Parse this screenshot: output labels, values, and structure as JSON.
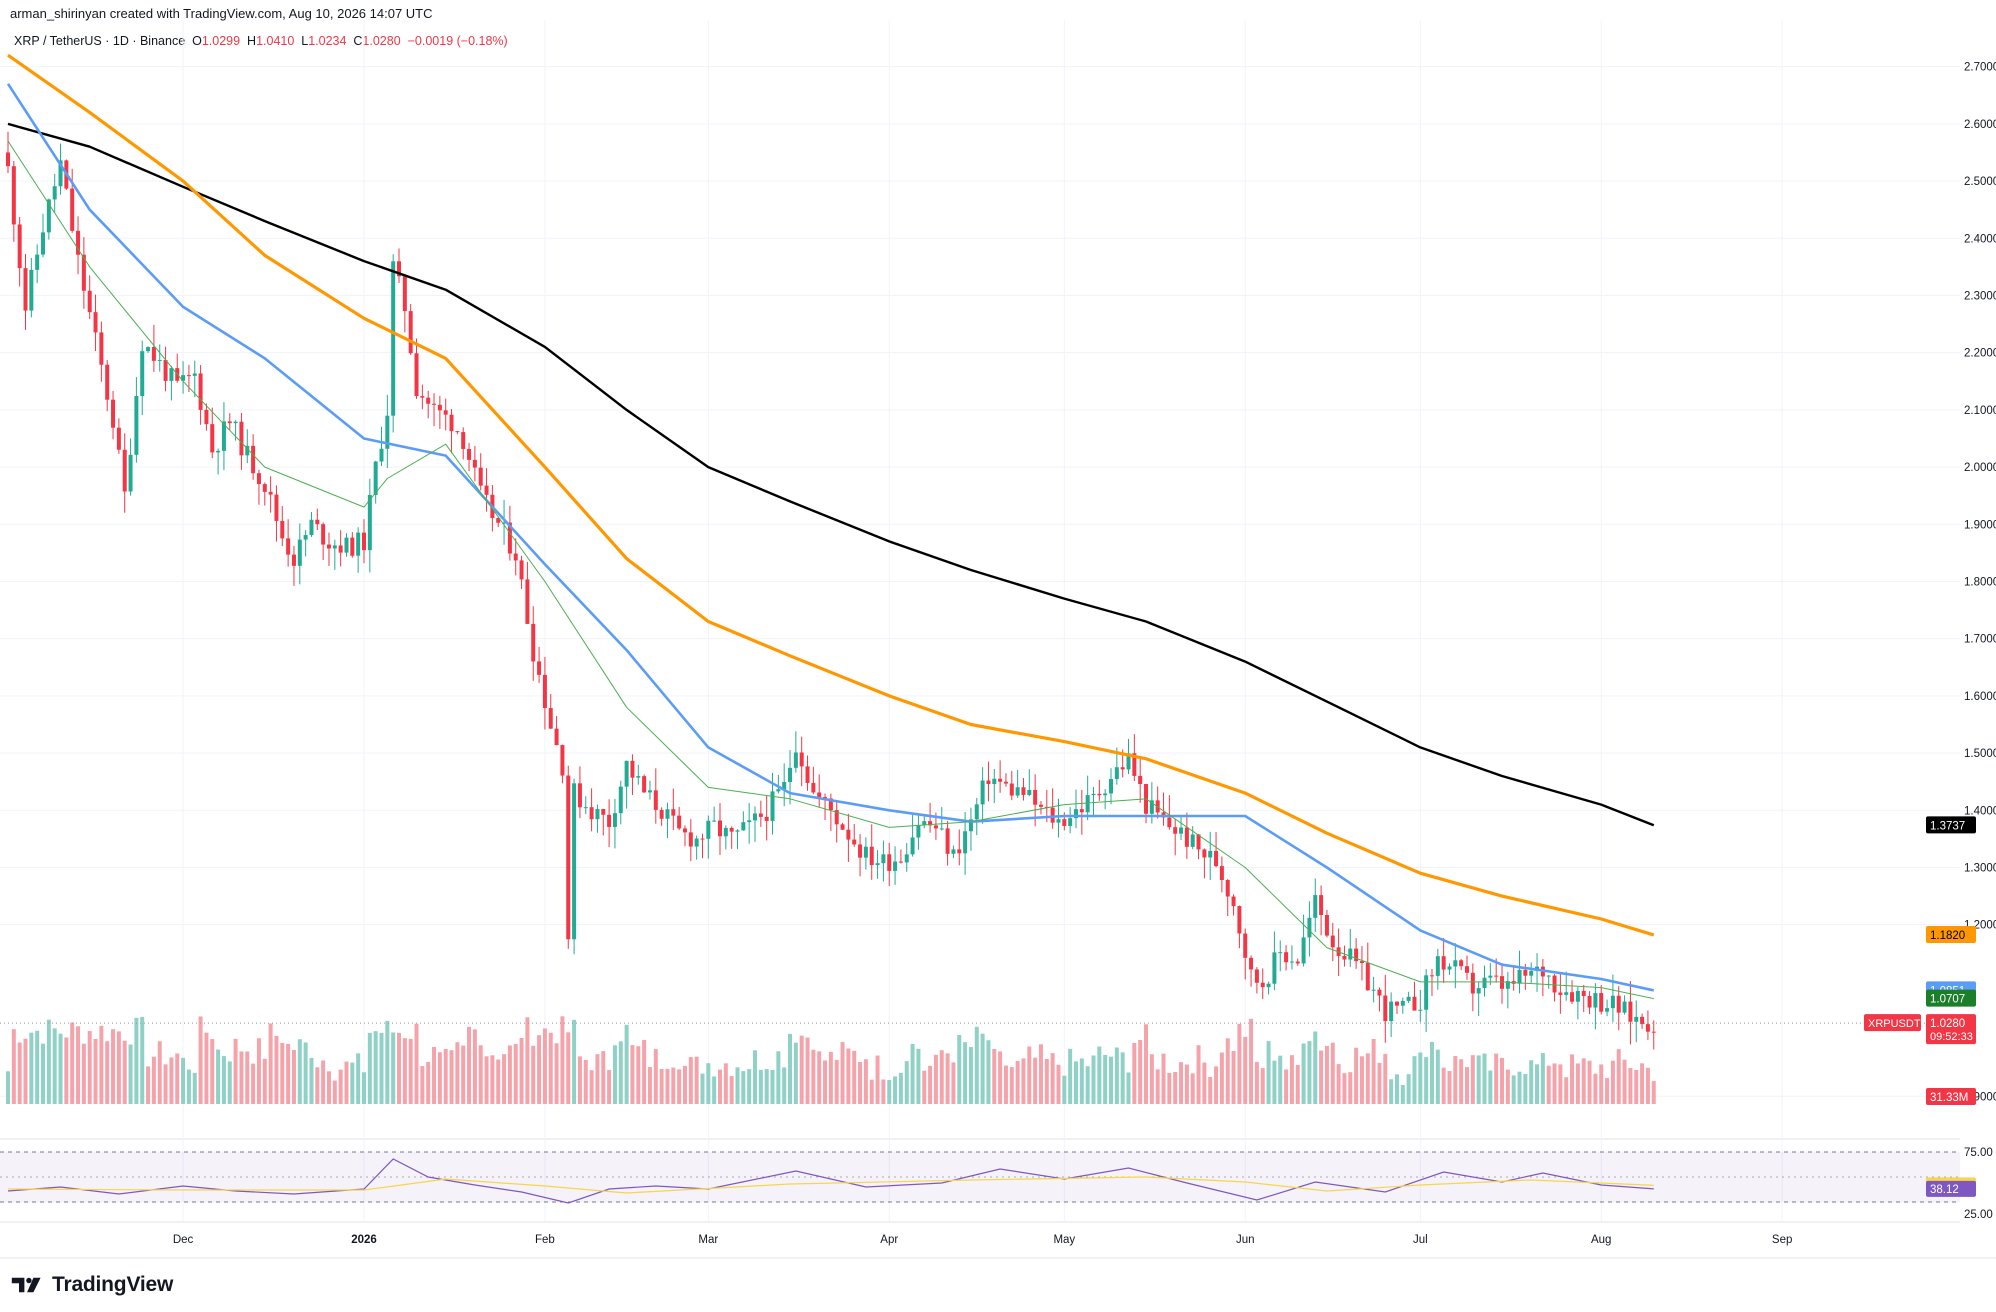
{
  "header": {
    "credit": "arman_shirinyan created with TradingView.com, Aug 10, 2026 14:07 UTC",
    "symbol": "XRP / TetherUS · 1D · Binance",
    "open_label": "O",
    "open": "1.0299",
    "high_label": "H",
    "high": "1.0410",
    "low_label": "L",
    "low": "1.0234",
    "close_label": "C",
    "close": "1.0280",
    "change": "−0.0019 (−0.18%)"
  },
  "brand": {
    "name": "TradingView",
    "icon": "tradingview-logo-icon"
  },
  "colors": {
    "up": "#22ab94",
    "down": "#f23645",
    "ma20": "#4caf50",
    "ma50": "#5b9cf6",
    "ma100": "#ff9800",
    "ma200": "#000000",
    "rsi": "#7e57c2",
    "rsi_ma": "#f7d64a",
    "vol_up": "#8fd1c6",
    "vol_down": "#f5a3ab"
  },
  "chart_data": {
    "type": "line",
    "instrument": "XRPUSDT",
    "timeframe": "1D",
    "x_ticks": [
      "Dec",
      "2026",
      "Feb",
      "Mar",
      "Apr",
      "May",
      "Jun",
      "Jul",
      "Aug",
      "Sep"
    ],
    "y_ticks": [
      "2.7000",
      "2.6000",
      "2.5000",
      "2.4000",
      "2.3000",
      "2.2000",
      "2.1000",
      "2.0000",
      "1.9000",
      "1.8000",
      "1.7000",
      "1.6000",
      "1.5000",
      "1.4000",
      "1.3000",
      "1.2000",
      "0.9000"
    ],
    "ylim": [
      0.89,
      2.73
    ],
    "grid": true,
    "price_close_path": [
      {
        "date": "2025-11-01",
        "close": 2.52
      },
      {
        "date": "2025-11-04",
        "close": 2.28
      },
      {
        "date": "2025-11-07",
        "close": 2.42
      },
      {
        "date": "2025-11-10",
        "close": 2.53
      },
      {
        "date": "2025-11-13",
        "close": 2.36
      },
      {
        "date": "2025-11-16",
        "close": 2.22
      },
      {
        "date": "2025-11-19",
        "close": 2.08
      },
      {
        "date": "2025-11-21",
        "close": 1.95
      },
      {
        "date": "2025-11-24",
        "close": 2.22
      },
      {
        "date": "2025-11-27",
        "close": 2.18
      },
      {
        "date": "2025-11-30",
        "close": 2.14
      },
      {
        "date": "2025-12-03",
        "close": 2.16
      },
      {
        "date": "2025-12-06",
        "close": 2.03
      },
      {
        "date": "2025-12-09",
        "close": 2.08
      },
      {
        "date": "2025-12-12",
        "close": 2.02
      },
      {
        "date": "2025-12-15",
        "close": 1.97
      },
      {
        "date": "2025-12-18",
        "close": 1.88
      },
      {
        "date": "2025-12-20",
        "close": 1.84
      },
      {
        "date": "2025-12-23",
        "close": 1.9
      },
      {
        "date": "2025-12-26",
        "close": 1.87
      },
      {
        "date": "2025-12-29",
        "close": 1.86
      },
      {
        "date": "2026-01-01",
        "close": 1.87
      },
      {
        "date": "2026-01-03",
        "close": 2.0
      },
      {
        "date": "2026-01-05",
        "close": 2.1
      },
      {
        "date": "2026-01-06",
        "close": 2.35
      },
      {
        "date": "2026-01-08",
        "close": 2.28
      },
      {
        "date": "2026-01-10",
        "close": 2.14
      },
      {
        "date": "2026-01-13",
        "close": 2.1
      },
      {
        "date": "2026-01-16",
        "close": 2.08
      },
      {
        "date": "2026-01-18",
        "close": 2.05
      },
      {
        "date": "2026-01-21",
        "close": 1.95
      },
      {
        "date": "2026-01-24",
        "close": 1.9
      },
      {
        "date": "2026-01-27",
        "close": 1.85
      },
      {
        "date": "2026-01-30",
        "close": 1.68
      },
      {
        "date": "2026-02-02",
        "close": 1.55
      },
      {
        "date": "2026-02-04",
        "close": 1.48
      },
      {
        "date": "2026-02-05",
        "close": 1.18
      },
      {
        "date": "2026-02-06",
        "close": 1.43
      },
      {
        "date": "2026-02-09",
        "close": 1.4
      },
      {
        "date": "2026-02-12",
        "close": 1.38
      },
      {
        "date": "2026-02-15",
        "close": 1.48
      },
      {
        "date": "2026-02-18",
        "close": 1.43
      },
      {
        "date": "2026-02-21",
        "close": 1.4
      },
      {
        "date": "2026-02-24",
        "close": 1.36
      },
      {
        "date": "2026-02-27",
        "close": 1.35
      },
      {
        "date": "2026-03-02",
        "close": 1.37
      },
      {
        "date": "2026-03-05",
        "close": 1.35
      },
      {
        "date": "2026-03-08",
        "close": 1.37
      },
      {
        "date": "2026-03-11",
        "close": 1.4
      },
      {
        "date": "2026-03-14",
        "close": 1.44
      },
      {
        "date": "2026-03-16",
        "close": 1.52
      },
      {
        "date": "2026-03-19",
        "close": 1.43
      },
      {
        "date": "2026-03-22",
        "close": 1.4
      },
      {
        "date": "2026-03-25",
        "close": 1.36
      },
      {
        "date": "2026-03-28",
        "close": 1.32
      },
      {
        "date": "2026-03-31",
        "close": 1.31
      },
      {
        "date": "2026-04-03",
        "close": 1.32
      },
      {
        "date": "2026-04-06",
        "close": 1.38
      },
      {
        "date": "2026-04-09",
        "close": 1.37
      },
      {
        "date": "2026-04-12",
        "close": 1.32
      },
      {
        "date": "2026-04-15",
        "close": 1.38
      },
      {
        "date": "2026-04-18",
        "close": 1.46
      },
      {
        "date": "2026-04-21",
        "close": 1.44
      },
      {
        "date": "2026-04-24",
        "close": 1.43
      },
      {
        "date": "2026-04-27",
        "close": 1.4
      },
      {
        "date": "2026-04-30",
        "close": 1.38
      },
      {
        "date": "2026-05-03",
        "close": 1.4
      },
      {
        "date": "2026-05-06",
        "close": 1.42
      },
      {
        "date": "2026-05-09",
        "close": 1.46
      },
      {
        "date": "2026-05-12",
        "close": 1.49
      },
      {
        "date": "2026-05-15",
        "close": 1.41
      },
      {
        "date": "2026-05-18",
        "close": 1.38
      },
      {
        "date": "2026-05-21",
        "close": 1.36
      },
      {
        "date": "2026-05-24",
        "close": 1.33
      },
      {
        "date": "2026-05-27",
        "close": 1.31
      },
      {
        "date": "2026-05-30",
        "close": 1.24
      },
      {
        "date": "2026-06-02",
        "close": 1.11
      },
      {
        "date": "2026-06-04",
        "close": 1.1
      },
      {
        "date": "2026-06-07",
        "close": 1.15
      },
      {
        "date": "2026-06-10",
        "close": 1.14
      },
      {
        "date": "2026-06-13",
        "close": 1.24
      },
      {
        "date": "2026-06-16",
        "close": 1.17
      },
      {
        "date": "2026-06-19",
        "close": 1.14
      },
      {
        "date": "2026-06-22",
        "close": 1.1
      },
      {
        "date": "2026-06-25",
        "close": 1.05
      },
      {
        "date": "2026-06-28",
        "close": 1.05
      },
      {
        "date": "2026-07-01",
        "close": 1.07
      },
      {
        "date": "2026-07-04",
        "close": 1.14
      },
      {
        "date": "2026-07-07",
        "close": 1.12
      },
      {
        "date": "2026-07-10",
        "close": 1.09
      },
      {
        "date": "2026-07-13",
        "close": 1.1
      },
      {
        "date": "2026-07-16",
        "close": 1.09
      },
      {
        "date": "2026-07-19",
        "close": 1.11
      },
      {
        "date": "2026-07-22",
        "close": 1.12
      },
      {
        "date": "2026-07-25",
        "close": 1.09
      },
      {
        "date": "2026-07-28",
        "close": 1.08
      },
      {
        "date": "2026-07-31",
        "close": 1.07
      },
      {
        "date": "2026-08-03",
        "close": 1.06
      },
      {
        "date": "2026-08-06",
        "close": 1.04
      },
      {
        "date": "2026-08-08",
        "close": 1.03
      },
      {
        "date": "2026-08-10",
        "close": 1.028
      }
    ],
    "series": [
      {
        "values": [
          {
            "date": "2025-11-01",
            "v": 2.6
          },
          {
            "date": "2025-11-15",
            "v": 2.56
          },
          {
            "date": "2025-12-01",
            "v": 2.49
          },
          {
            "date": "2025-12-15",
            "v": 2.43
          },
          {
            "date": "2026-01-01",
            "v": 2.36
          },
          {
            "date": "2026-01-15",
            "v": 2.31
          },
          {
            "date": "2026-02-01",
            "v": 2.21
          },
          {
            "date": "2026-02-15",
            "v": 2.1
          },
          {
            "date": "2026-03-01",
            "v": 2.0
          },
          {
            "date": "2026-03-15",
            "v": 1.94
          },
          {
            "date": "2026-04-01",
            "v": 1.87
          },
          {
            "date": "2026-04-15",
            "v": 1.82
          },
          {
            "date": "2026-05-01",
            "v": 1.77
          },
          {
            "date": "2026-05-15",
            "v": 1.73
          },
          {
            "date": "2026-06-01",
            "v": 1.66
          },
          {
            "date": "2026-06-15",
            "v": 1.59
          },
          {
            "date": "2026-07-01",
            "v": 1.51
          },
          {
            "date": "2026-07-15",
            "v": 1.46
          },
          {
            "date": "2026-08-01",
            "v": 1.41
          },
          {
            "date": "2026-08-10",
            "v": 1.3737
          }
        ]
      },
      {
        "values": [
          {
            "date": "2025-11-01",
            "v": 2.72
          },
          {
            "date": "2025-11-15",
            "v": 2.62
          },
          {
            "date": "2025-12-01",
            "v": 2.5
          },
          {
            "date": "2025-12-15",
            "v": 2.37
          },
          {
            "date": "2026-01-01",
            "v": 2.26
          },
          {
            "date": "2026-01-15",
            "v": 2.19
          },
          {
            "date": "2026-02-01",
            "v": 2.0
          },
          {
            "date": "2026-02-15",
            "v": 1.84
          },
          {
            "date": "2026-03-01",
            "v": 1.73
          },
          {
            "date": "2026-03-15",
            "v": 1.67
          },
          {
            "date": "2026-04-01",
            "v": 1.6
          },
          {
            "date": "2026-04-15",
            "v": 1.55
          },
          {
            "date": "2026-05-01",
            "v": 1.52
          },
          {
            "date": "2026-05-15",
            "v": 1.49
          },
          {
            "date": "2026-06-01",
            "v": 1.43
          },
          {
            "date": "2026-06-15",
            "v": 1.36
          },
          {
            "date": "2026-07-01",
            "v": 1.29
          },
          {
            "date": "2026-07-15",
            "v": 1.25
          },
          {
            "date": "2026-08-01",
            "v": 1.21
          },
          {
            "date": "2026-08-10",
            "v": 1.182
          }
        ]
      },
      {
        "values": [
          {
            "date": "2025-11-01",
            "v": 2.67
          },
          {
            "date": "2025-11-15",
            "v": 2.45
          },
          {
            "date": "2025-12-01",
            "v": 2.28
          },
          {
            "date": "2025-12-15",
            "v": 2.19
          },
          {
            "date": "2026-01-01",
            "v": 2.05
          },
          {
            "date": "2026-01-15",
            "v": 2.02
          },
          {
            "date": "2026-02-01",
            "v": 1.83
          },
          {
            "date": "2026-02-15",
            "v": 1.68
          },
          {
            "date": "2026-03-01",
            "v": 1.51
          },
          {
            "date": "2026-03-15",
            "v": 1.43
          },
          {
            "date": "2026-04-01",
            "v": 1.4
          },
          {
            "date": "2026-04-15",
            "v": 1.38
          },
          {
            "date": "2026-05-01",
            "v": 1.39
          },
          {
            "date": "2026-05-15",
            "v": 1.39
          },
          {
            "date": "2026-06-01",
            "v": 1.39
          },
          {
            "date": "2026-06-15",
            "v": 1.3
          },
          {
            "date": "2026-07-01",
            "v": 1.19
          },
          {
            "date": "2026-07-15",
            "v": 1.13
          },
          {
            "date": "2026-08-01",
            "v": 1.105
          },
          {
            "date": "2026-08-10",
            "v": 1.0851
          }
        ]
      },
      {
        "values": [
          {
            "date": "2025-11-01",
            "v": 2.57
          },
          {
            "date": "2025-11-15",
            "v": 2.35
          },
          {
            "date": "2025-12-01",
            "v": 2.15
          },
          {
            "date": "2025-12-15",
            "v": 2.0
          },
          {
            "date": "2026-01-01",
            "v": 1.93
          },
          {
            "date": "2026-01-05",
            "v": 1.98
          },
          {
            "date": "2026-01-15",
            "v": 2.04
          },
          {
            "date": "2026-02-01",
            "v": 1.8
          },
          {
            "date": "2026-02-15",
            "v": 1.58
          },
          {
            "date": "2026-03-01",
            "v": 1.44
          },
          {
            "date": "2026-03-15",
            "v": 1.42
          },
          {
            "date": "2026-04-01",
            "v": 1.37
          },
          {
            "date": "2026-04-15",
            "v": 1.38
          },
          {
            "date": "2026-05-01",
            "v": 1.41
          },
          {
            "date": "2026-05-15",
            "v": 1.42
          },
          {
            "date": "2026-06-01",
            "v": 1.3
          },
          {
            "date": "2026-06-15",
            "v": 1.16
          },
          {
            "date": "2026-07-01",
            "v": 1.1
          },
          {
            "date": "2026-07-15",
            "v": 1.1
          },
          {
            "date": "2026-08-01",
            "v": 1.09
          },
          {
            "date": "2026-08-10",
            "v": 1.0707
          }
        ]
      }
    ],
    "price_tags": {
      "ma200": "1.3737",
      "ma100": "1.1820",
      "ma50": "1.0851",
      "ma20": "1.0707",
      "symbol": "XRPUSDT",
      "last": "1.0280",
      "countdown": "09:52:33",
      "volume": "31.33M"
    },
    "rsi": {
      "ylim": [
        25,
        75
      ],
      "ticks": [
        "75.00",
        "25.00"
      ],
      "rsi_value": "38.12",
      "ma_value": "41.66",
      "values": [
        {
          "date": "2025-11-01",
          "v": 36
        },
        {
          "date": "2025-11-10",
          "v": 40
        },
        {
          "date": "2025-11-20",
          "v": 33
        },
        {
          "date": "2025-12-01",
          "v": 41
        },
        {
          "date": "2025-12-10",
          "v": 36
        },
        {
          "date": "2025-12-20",
          "v": 33
        },
        {
          "date": "2026-01-01",
          "v": 38
        },
        {
          "date": "2026-01-06",
          "v": 68
        },
        {
          "date": "2026-01-12",
          "v": 50
        },
        {
          "date": "2026-01-20",
          "v": 42
        },
        {
          "date": "2026-01-28",
          "v": 35
        },
        {
          "date": "2026-02-05",
          "v": 24
        },
        {
          "date": "2026-02-12",
          "v": 38
        },
        {
          "date": "2026-02-20",
          "v": 41
        },
        {
          "date": "2026-03-01",
          "v": 38
        },
        {
          "date": "2026-03-16",
          "v": 56
        },
        {
          "date": "2026-03-28",
          "v": 40
        },
        {
          "date": "2026-04-10",
          "v": 44
        },
        {
          "date": "2026-04-20",
          "v": 58
        },
        {
          "date": "2026-05-01",
          "v": 48
        },
        {
          "date": "2026-05-12",
          "v": 59
        },
        {
          "date": "2026-05-22",
          "v": 44
        },
        {
          "date": "2026-06-03",
          "v": 27
        },
        {
          "date": "2026-06-13",
          "v": 45
        },
        {
          "date": "2026-06-25",
          "v": 35
        },
        {
          "date": "2026-07-05",
          "v": 55
        },
        {
          "date": "2026-07-15",
          "v": 45
        },
        {
          "date": "2026-07-22",
          "v": 54
        },
        {
          "date": "2026-08-01",
          "v": 42
        },
        {
          "date": "2026-08-10",
          "v": 38.12
        }
      ],
      "ma": [
        {
          "date": "2025-11-01",
          "v": 38
        },
        {
          "date": "2025-12-01",
          "v": 37
        },
        {
          "date": "2026-01-01",
          "v": 37
        },
        {
          "date": "2026-01-15",
          "v": 48
        },
        {
          "date": "2026-02-01",
          "v": 41
        },
        {
          "date": "2026-02-15",
          "v": 34
        },
        {
          "date": "2026-03-15",
          "v": 43
        },
        {
          "date": "2026-04-15",
          "v": 47
        },
        {
          "date": "2026-05-15",
          "v": 50
        },
        {
          "date": "2026-06-01",
          "v": 45
        },
        {
          "date": "2026-06-15",
          "v": 36
        },
        {
          "date": "2026-07-01",
          "v": 42
        },
        {
          "date": "2026-07-20",
          "v": 47
        },
        {
          "date": "2026-08-10",
          "v": 41.66
        }
      ]
    }
  }
}
